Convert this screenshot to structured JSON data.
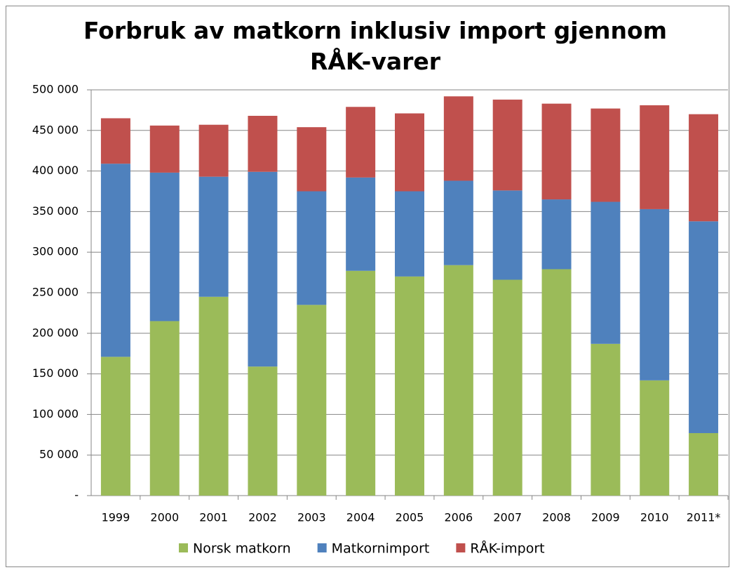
{
  "chart_data": {
    "type": "stacked_bar",
    "title": "Forbruk av matkorn inklusiv import gjennom RÅK-varer",
    "categories": [
      "1999",
      "2000",
      "2001",
      "2002",
      "2003",
      "2004",
      "2005",
      "2006",
      "2007",
      "2008",
      "2009",
      "2010",
      "2011*"
    ],
    "series": [
      {
        "name": "Norsk matkorn",
        "color": "#9bbb59",
        "values": [
          171000,
          215000,
          245000,
          159000,
          235000,
          277000,
          270000,
          284000,
          266000,
          279000,
          187000,
          142000,
          77000
        ]
      },
      {
        "name": "Matkornimport",
        "color": "#4f81bd",
        "values": [
          238000,
          183000,
          148000,
          240000,
          140000,
          115000,
          105000,
          104000,
          110000,
          86000,
          175000,
          211000,
          261000
        ]
      },
      {
        "name": "RÅK-import",
        "color": "#c0504d",
        "values": [
          56000,
          58000,
          64000,
          69000,
          79000,
          87000,
          96000,
          104000,
          112000,
          118000,
          115000,
          128000,
          132000
        ]
      }
    ],
    "ylim": [
      0,
      500000
    ],
    "yticks": [
      {
        "value": 0,
        "label": "-"
      },
      {
        "value": 50000,
        "label": "50 000"
      },
      {
        "value": 100000,
        "label": "100 000"
      },
      {
        "value": 150000,
        "label": "150 000"
      },
      {
        "value": 200000,
        "label": "200 000"
      },
      {
        "value": 250000,
        "label": "250 000"
      },
      {
        "value": 300000,
        "label": "300 000"
      },
      {
        "value": 350000,
        "label": "350 000"
      },
      {
        "value": 400000,
        "label": "400 000"
      },
      {
        "value": 450000,
        "label": "450 000"
      },
      {
        "value": 500000,
        "label": "500 000"
      }
    ],
    "grid": true,
    "legend": "bottom"
  }
}
